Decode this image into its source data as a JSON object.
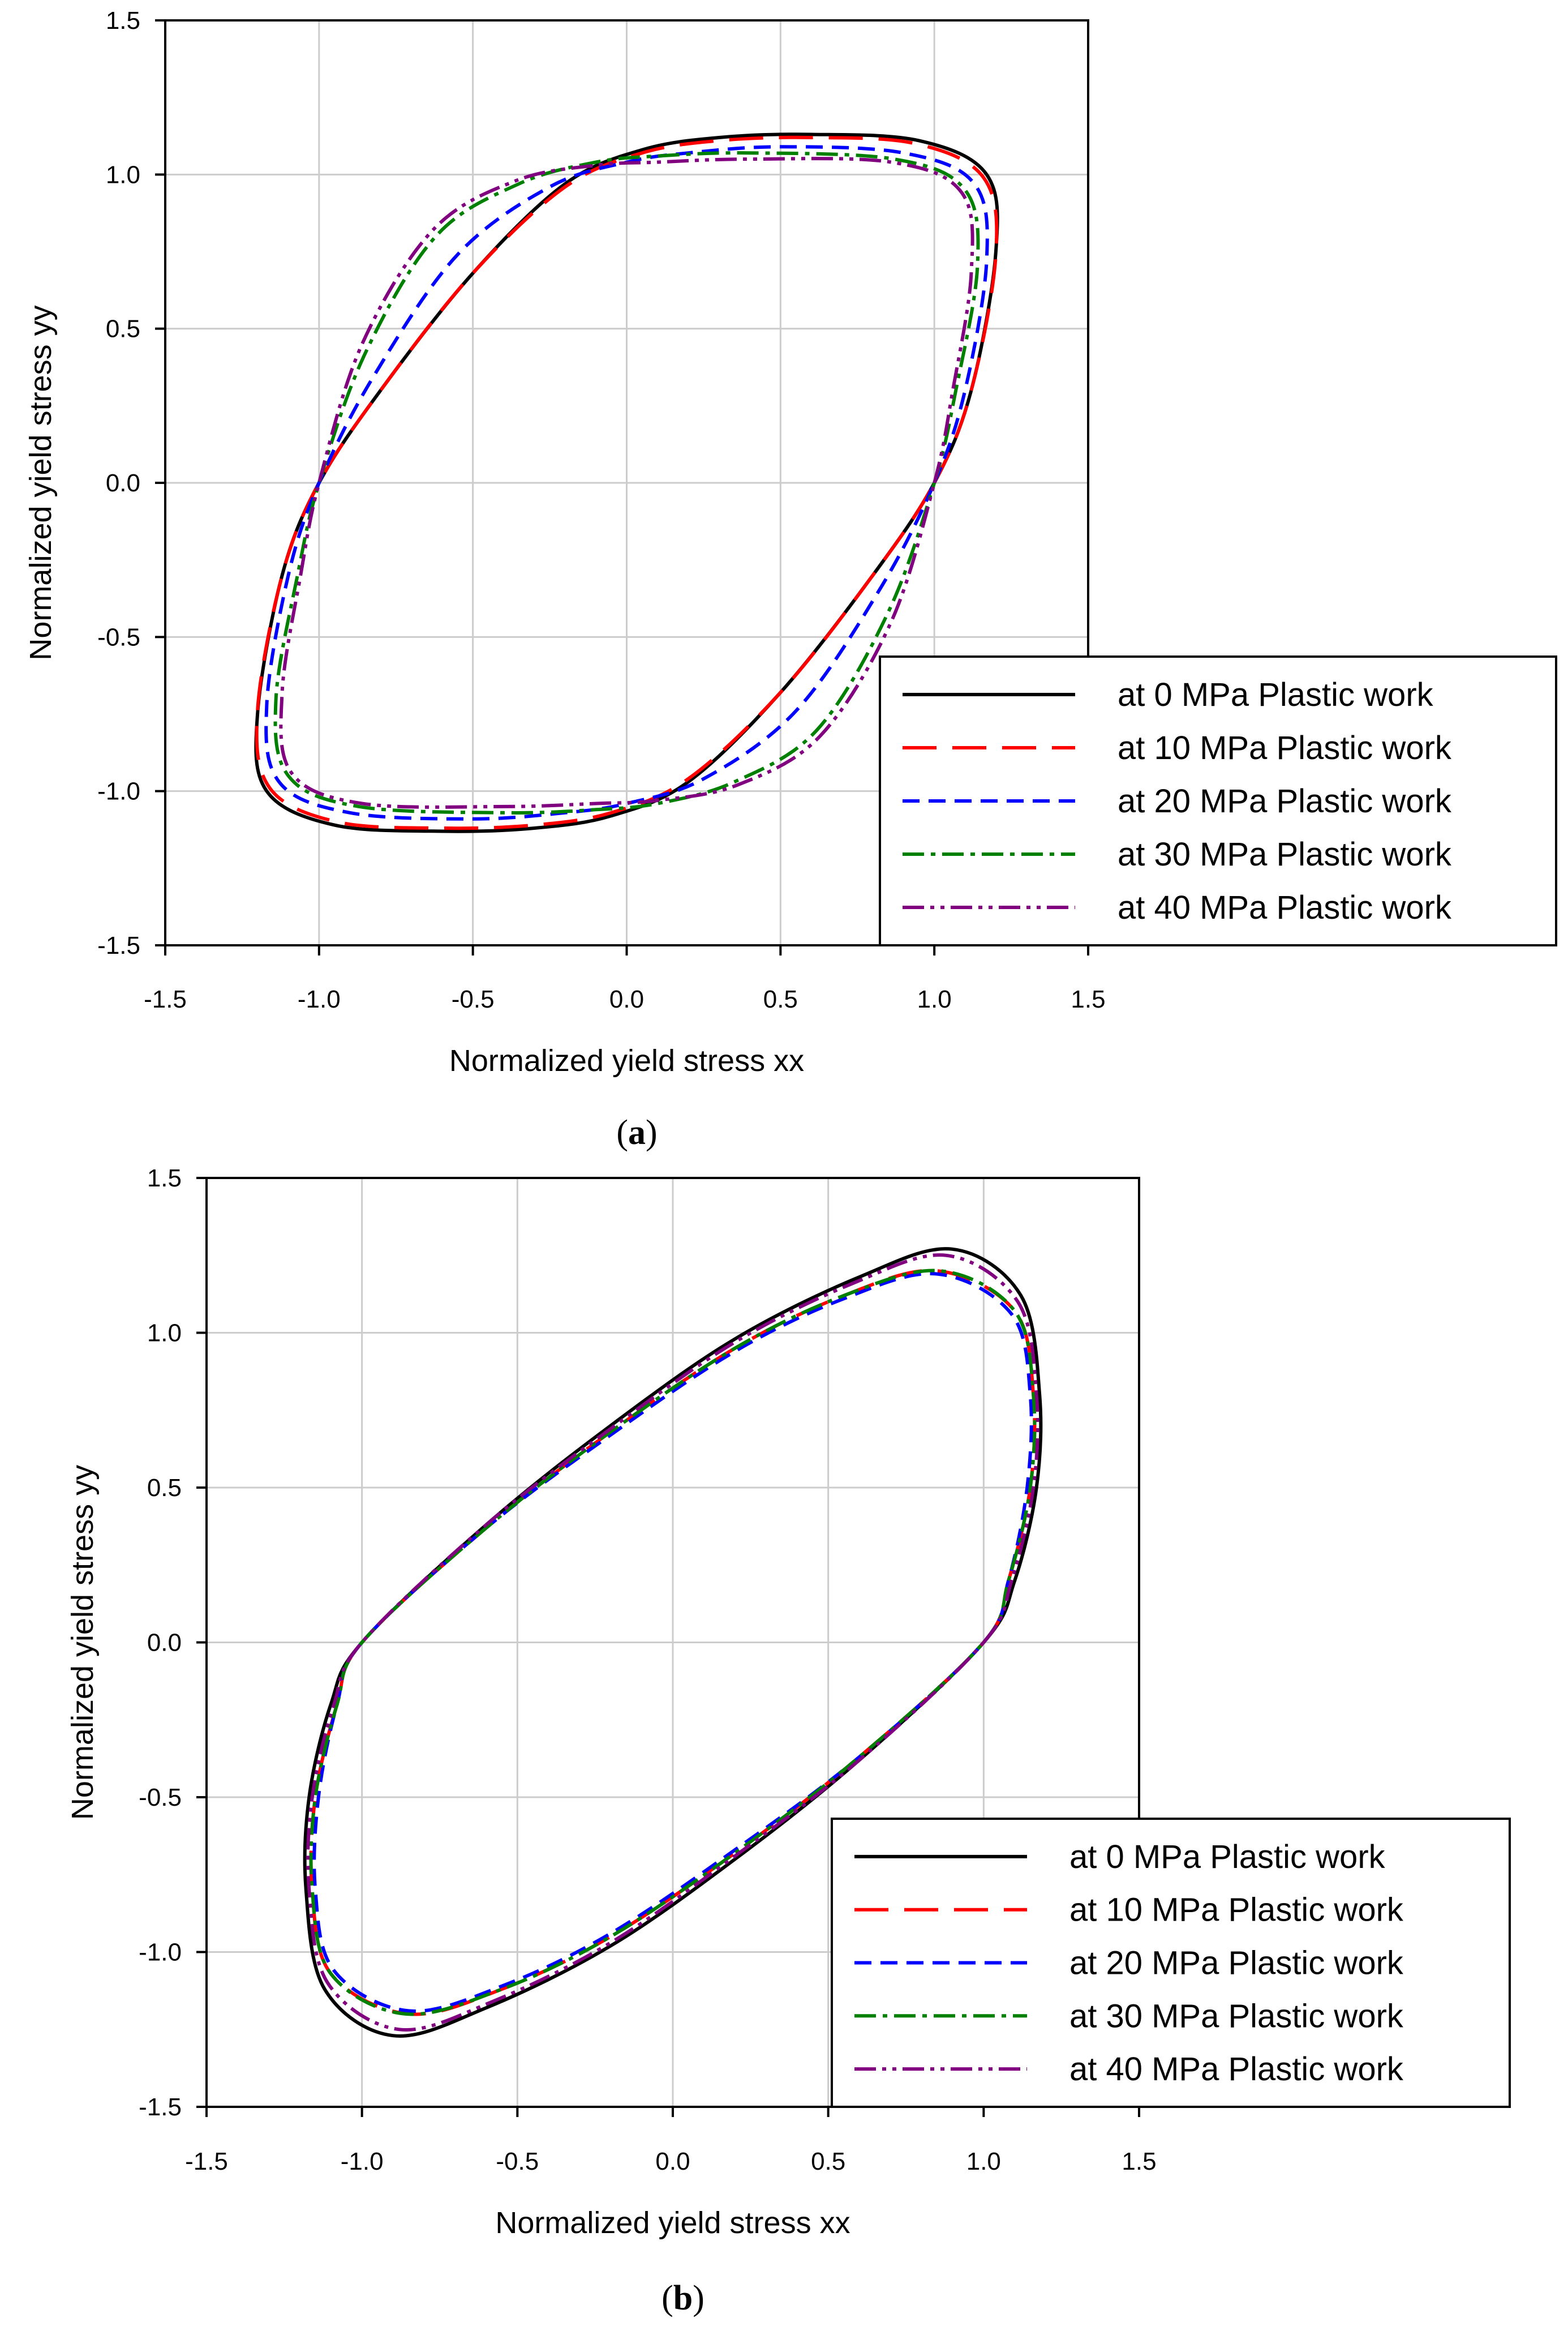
{
  "chart_data": [
    {
      "type": "line",
      "panel": "a",
      "caption_letter": "a",
      "xlabel": "Normalized yield stress xx",
      "ylabel": "Normalized yield stress yy",
      "xlim": [
        -1.5,
        1.5
      ],
      "ylim": [
        -1.5,
        1.5
      ],
      "xticks": [
        "-1.5",
        "-1.0",
        "-0.5",
        "0.0",
        "0.5",
        "1.0",
        "1.5"
      ],
      "yticks": [
        "-1.5",
        "-1.0",
        "-0.5",
        "0.0",
        "0.5",
        "1.0",
        "1.5"
      ],
      "grid": true,
      "legend_position": "bottom-right",
      "series": [
        {
          "name": "at 0 MPa Plastic work",
          "color": "#000000",
          "style": "solid",
          "points": [
            [
              1.0,
              0.0
            ],
            [
              1.12,
              0.3
            ],
            [
              1.2,
              0.75
            ],
            [
              1.17,
              1.0
            ],
            [
              0.95,
              1.11
            ],
            [
              0.6,
              1.13
            ],
            [
              0.3,
              1.12
            ],
            [
              0.05,
              1.08
            ],
            [
              -0.2,
              0.97
            ],
            [
              -0.5,
              0.68
            ],
            [
              -0.8,
              0.3
            ],
            [
              -1.0,
              0.0
            ],
            [
              -1.12,
              -0.3
            ],
            [
              -1.2,
              -0.75
            ],
            [
              -1.17,
              -1.0
            ],
            [
              -0.95,
              -1.11
            ],
            [
              -0.6,
              -1.13
            ],
            [
              -0.3,
              -1.12
            ],
            [
              -0.05,
              -1.08
            ],
            [
              0.2,
              -0.97
            ],
            [
              0.5,
              -0.68
            ],
            [
              0.8,
              -0.3
            ]
          ]
        },
        {
          "name": "at 10 MPa Plastic work",
          "color": "#ff0000",
          "style": "longdash",
          "points": [
            [
              1.0,
              0.0
            ],
            [
              1.12,
              0.3
            ],
            [
              1.2,
              0.74
            ],
            [
              1.16,
              0.99
            ],
            [
              0.94,
              1.1
            ],
            [
              0.6,
              1.12
            ],
            [
              0.3,
              1.11
            ],
            [
              0.05,
              1.07
            ],
            [
              -0.2,
              0.96
            ],
            [
              -0.5,
              0.68
            ],
            [
              -0.8,
              0.3
            ],
            [
              -1.0,
              0.0
            ],
            [
              -1.12,
              -0.3
            ],
            [
              -1.2,
              -0.74
            ],
            [
              -1.16,
              -0.99
            ],
            [
              -0.94,
              -1.1
            ],
            [
              -0.6,
              -1.12
            ],
            [
              -0.3,
              -1.11
            ],
            [
              -0.05,
              -1.07
            ],
            [
              0.2,
              -0.96
            ],
            [
              0.5,
              -0.68
            ],
            [
              0.8,
              -0.3
            ]
          ]
        },
        {
          "name": "at 20 MPa Plastic work",
          "color": "#0000ff",
          "style": "dash",
          "points": [
            [
              1.0,
              0.0
            ],
            [
              1.1,
              0.3
            ],
            [
              1.17,
              0.72
            ],
            [
              1.13,
              0.97
            ],
            [
              0.9,
              1.07
            ],
            [
              0.5,
              1.09
            ],
            [
              0.2,
              1.07
            ],
            [
              0.0,
              1.04
            ],
            [
              -0.25,
              0.96
            ],
            [
              -0.55,
              0.74
            ],
            [
              -0.82,
              0.35
            ],
            [
              -1.0,
              0.0
            ],
            [
              -1.1,
              -0.3
            ],
            [
              -1.17,
              -0.72
            ],
            [
              -1.13,
              -0.97
            ],
            [
              -0.9,
              -1.07
            ],
            [
              -0.5,
              -1.09
            ],
            [
              -0.2,
              -1.07
            ],
            [
              0.0,
              -1.04
            ],
            [
              0.25,
              -0.96
            ],
            [
              0.55,
              -0.74
            ],
            [
              0.82,
              -0.35
            ]
          ]
        },
        {
          "name": "at 30 MPa Plastic work",
          "color": "#008000",
          "style": "dashdot",
          "points": [
            [
              1.0,
              0.0
            ],
            [
              1.07,
              0.3
            ],
            [
              1.14,
              0.7
            ],
            [
              1.1,
              0.95
            ],
            [
              0.87,
              1.05
            ],
            [
              0.4,
              1.07
            ],
            [
              0.1,
              1.06
            ],
            [
              -0.1,
              1.04
            ],
            [
              -0.35,
              0.97
            ],
            [
              -0.62,
              0.8
            ],
            [
              -0.85,
              0.42
            ],
            [
              -1.0,
              0.0
            ],
            [
              -1.07,
              -0.3
            ],
            [
              -1.14,
              -0.7
            ],
            [
              -1.1,
              -0.95
            ],
            [
              -0.87,
              -1.05
            ],
            [
              -0.4,
              -1.07
            ],
            [
              -0.1,
              -1.06
            ],
            [
              0.1,
              -1.04
            ],
            [
              0.35,
              -0.97
            ],
            [
              0.62,
              -0.8
            ],
            [
              0.85,
              -0.42
            ]
          ]
        },
        {
          "name": "at 40 MPa Plastic work",
          "color": "#800080",
          "style": "dashdotdot",
          "points": [
            [
              1.0,
              0.0
            ],
            [
              1.06,
              0.3
            ],
            [
              1.12,
              0.68
            ],
            [
              1.09,
              0.94
            ],
            [
              0.86,
              1.04
            ],
            [
              0.4,
              1.05
            ],
            [
              0.1,
              1.04
            ],
            [
              -0.1,
              1.03
            ],
            [
              -0.36,
              0.98
            ],
            [
              -0.63,
              0.82
            ],
            [
              -0.86,
              0.45
            ],
            [
              -1.0,
              0.0
            ],
            [
              -1.06,
              -0.3
            ],
            [
              -1.12,
              -0.68
            ],
            [
              -1.09,
              -0.94
            ],
            [
              -0.86,
              -1.04
            ],
            [
              -0.4,
              -1.05
            ],
            [
              -0.1,
              -1.04
            ],
            [
              0.1,
              -1.03
            ],
            [
              0.36,
              -0.98
            ],
            [
              0.63,
              -0.82
            ],
            [
              0.86,
              -0.45
            ]
          ]
        }
      ]
    },
    {
      "type": "line",
      "panel": "b",
      "caption_letter": "b",
      "xlabel": "Normalized yield stress xx",
      "ylabel": "Normalized yield stress yy",
      "xlim": [
        -1.5,
        1.5
      ],
      "ylim": [
        -1.5,
        1.5
      ],
      "xticks": [
        "-1.5",
        "-1.0",
        "-0.5",
        "0.0",
        "0.5",
        "1.0",
        "1.5"
      ],
      "yticks": [
        "-1.5",
        "-1.0",
        "-0.5",
        "0.0",
        "0.5",
        "1.0",
        "1.5"
      ],
      "grid": true,
      "legend_position": "bottom-right",
      "series": [
        {
          "name": "at 0 MPa Plastic work",
          "color": "#000000",
          "style": "solid",
          "points": [
            [
              1.0,
              0.0
            ],
            [
              1.1,
              0.2
            ],
            [
              1.17,
              0.5
            ],
            [
              1.18,
              0.8
            ],
            [
              1.12,
              1.12
            ],
            [
              0.9,
              1.27
            ],
            [
              0.6,
              1.18
            ],
            [
              0.2,
              0.98
            ],
            [
              -0.2,
              0.7
            ],
            [
              -0.6,
              0.38
            ],
            [
              -1.0,
              0.0
            ],
            [
              -1.1,
              -0.2
            ],
            [
              -1.17,
              -0.5
            ],
            [
              -1.18,
              -0.8
            ],
            [
              -1.12,
              -1.12
            ],
            [
              -0.9,
              -1.27
            ],
            [
              -0.6,
              -1.18
            ],
            [
              -0.2,
              -0.98
            ],
            [
              0.2,
              -0.7
            ],
            [
              0.6,
              -0.38
            ]
          ]
        },
        {
          "name": "at 10 MPa Plastic work",
          "color": "#ff0000",
          "style": "longdash",
          "points": [
            [
              1.0,
              0.0
            ],
            [
              1.08,
              0.2
            ],
            [
              1.15,
              0.5
            ],
            [
              1.16,
              0.8
            ],
            [
              1.1,
              1.07
            ],
            [
              0.85,
              1.2
            ],
            [
              0.55,
              1.12
            ],
            [
              0.2,
              0.95
            ],
            [
              -0.2,
              0.68
            ],
            [
              -0.6,
              0.37
            ],
            [
              -1.0,
              0.0
            ],
            [
              -1.08,
              -0.2
            ],
            [
              -1.15,
              -0.5
            ],
            [
              -1.16,
              -0.8
            ],
            [
              -1.1,
              -1.07
            ],
            [
              -0.85,
              -1.2
            ],
            [
              -0.55,
              -1.12
            ],
            [
              -0.2,
              -0.95
            ],
            [
              0.2,
              -0.68
            ],
            [
              0.6,
              -0.37
            ]
          ]
        },
        {
          "name": "at 20 MPa Plastic work",
          "color": "#0000ff",
          "style": "dash",
          "points": [
            [
              1.0,
              0.0
            ],
            [
              1.08,
              0.2
            ],
            [
              1.14,
              0.5
            ],
            [
              1.15,
              0.8
            ],
            [
              1.09,
              1.06
            ],
            [
              0.85,
              1.19
            ],
            [
              0.55,
              1.11
            ],
            [
              0.2,
              0.94
            ],
            [
              -0.2,
              0.67
            ],
            [
              -0.6,
              0.37
            ],
            [
              -1.0,
              0.0
            ],
            [
              -1.08,
              -0.2
            ],
            [
              -1.14,
              -0.5
            ],
            [
              -1.15,
              -0.8
            ],
            [
              -1.09,
              -1.06
            ],
            [
              -0.85,
              -1.19
            ],
            [
              -0.55,
              -1.11
            ],
            [
              -0.2,
              -0.94
            ],
            [
              0.2,
              -0.67
            ],
            [
              0.6,
              -0.37
            ]
          ]
        },
        {
          "name": "at 30 MPa Plastic work",
          "color": "#008000",
          "style": "dashdot",
          "points": [
            [
              1.0,
              0.0
            ],
            [
              1.08,
              0.2
            ],
            [
              1.15,
              0.5
            ],
            [
              1.16,
              0.8
            ],
            [
              1.1,
              1.07
            ],
            [
              0.86,
              1.2
            ],
            [
              0.55,
              1.12
            ],
            [
              0.2,
              0.95
            ],
            [
              -0.2,
              0.68
            ],
            [
              -0.6,
              0.37
            ],
            [
              -1.0,
              0.0
            ],
            [
              -1.08,
              -0.2
            ],
            [
              -1.15,
              -0.5
            ],
            [
              -1.16,
              -0.8
            ],
            [
              -1.1,
              -1.07
            ],
            [
              -0.86,
              -1.2
            ],
            [
              -0.55,
              -1.12
            ],
            [
              -0.2,
              -0.95
            ],
            [
              0.2,
              -0.68
            ],
            [
              0.6,
              -0.37
            ]
          ]
        },
        {
          "name": "at 40 MPa Plastic work",
          "color": "#800080",
          "style": "dashdotdot",
          "points": [
            [
              1.0,
              0.0
            ],
            [
              1.09,
              0.2
            ],
            [
              1.16,
              0.5
            ],
            [
              1.17,
              0.8
            ],
            [
              1.11,
              1.1
            ],
            [
              0.88,
              1.25
            ],
            [
              0.58,
              1.16
            ],
            [
              0.2,
              0.97
            ],
            [
              -0.2,
              0.69
            ],
            [
              -0.6,
              0.38
            ],
            [
              -1.0,
              0.0
            ],
            [
              -1.09,
              -0.2
            ],
            [
              -1.16,
              -0.5
            ],
            [
              -1.17,
              -0.8
            ],
            [
              -1.11,
              -1.1
            ],
            [
              -0.88,
              -1.25
            ],
            [
              -0.58,
              -1.16
            ],
            [
              -0.2,
              -0.97
            ],
            [
              0.2,
              -0.69
            ],
            [
              0.6,
              -0.38
            ]
          ]
        }
      ]
    }
  ]
}
